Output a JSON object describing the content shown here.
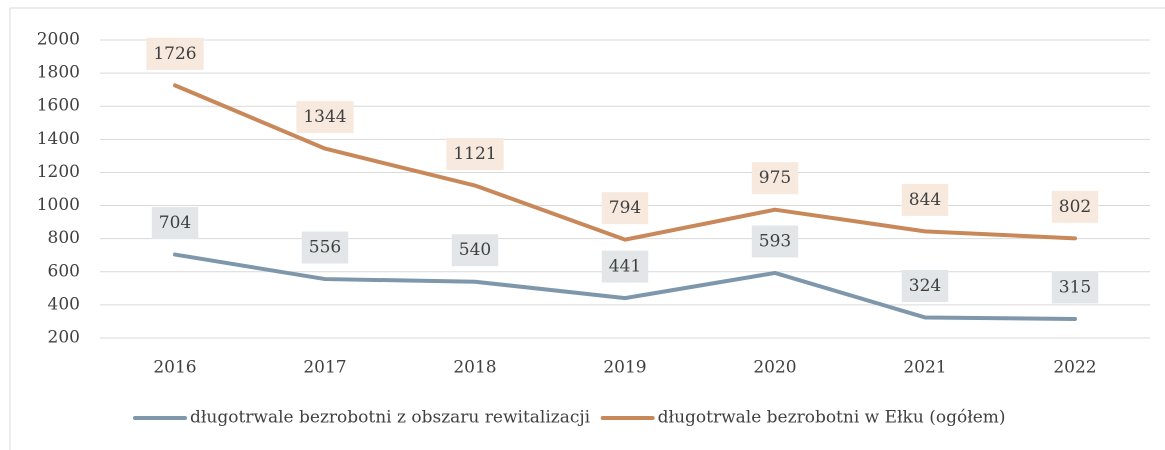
{
  "chart_data": {
    "type": "line",
    "categories": [
      "2016",
      "2017",
      "2018",
      "2019",
      "2020",
      "2021",
      "2022"
    ],
    "series": [
      {
        "name": "długotrwale bezrobotni z obszaru rewitalizacji",
        "color": "#7f97ab",
        "label_bg": "#e3e6e8",
        "values": [
          704,
          556,
          540,
          441,
          593,
          324,
          315
        ]
      },
      {
        "name": "długotrwale bezrobotni w Ełku (ogółem)",
        "color": "#c8885a",
        "label_bg": "#f7e9de",
        "values": [
          1726,
          1344,
          1121,
          794,
          975,
          844,
          802
        ]
      }
    ],
    "ylim": [
      200,
      2000
    ],
    "yticks": [
      200,
      400,
      600,
      800,
      1000,
      1200,
      1400,
      1600,
      1800,
      2000
    ],
    "grid": true,
    "legend": "bottom"
  }
}
